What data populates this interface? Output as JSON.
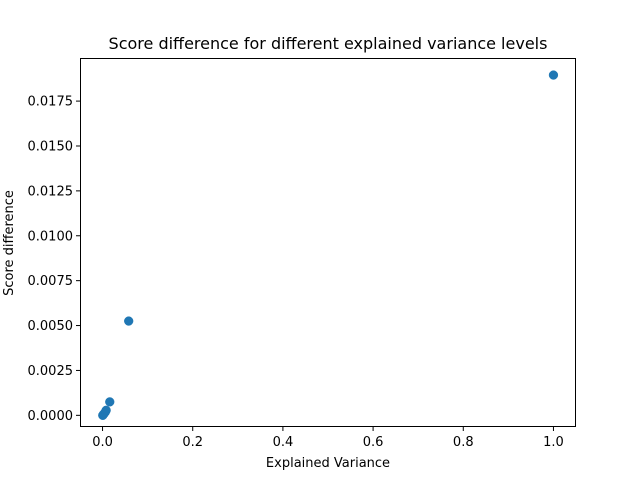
{
  "chart_data": {
    "type": "scatter",
    "title": "Score difference for different explained variance levels",
    "xlabel": "Explained Variance",
    "ylabel": "Score difference",
    "xlim": [
      -0.05,
      1.05
    ],
    "ylim": [
      -0.00065,
      0.0199
    ],
    "x_ticks": [
      0.0,
      0.2,
      0.4,
      0.6,
      0.8,
      1.0
    ],
    "x_tick_labels": [
      "0.0",
      "0.2",
      "0.4",
      "0.6",
      "0.8",
      "1.0"
    ],
    "y_ticks": [
      0.0,
      0.0025,
      0.005,
      0.0075,
      0.01,
      0.0125,
      0.015,
      0.0175
    ],
    "y_tick_labels": [
      "0.0000",
      "0.0025",
      "0.0050",
      "0.0075",
      "0.0100",
      "0.0125",
      "0.0150",
      "0.0175"
    ],
    "grid": false,
    "series": [
      {
        "color": "#1f77b4",
        "points": [
          {
            "x": 0.0005,
            "y": 0.0
          },
          {
            "x": 0.0015,
            "y": 3e-05
          },
          {
            "x": 0.003,
            "y": 8e-05
          },
          {
            "x": 0.006,
            "y": 0.00018
          },
          {
            "x": 0.008,
            "y": 0.00028
          },
          {
            "x": 0.016,
            "y": 0.00075
          },
          {
            "x": 0.058,
            "y": 0.00525
          },
          {
            "x": 1.0,
            "y": 0.01895
          }
        ]
      }
    ]
  }
}
